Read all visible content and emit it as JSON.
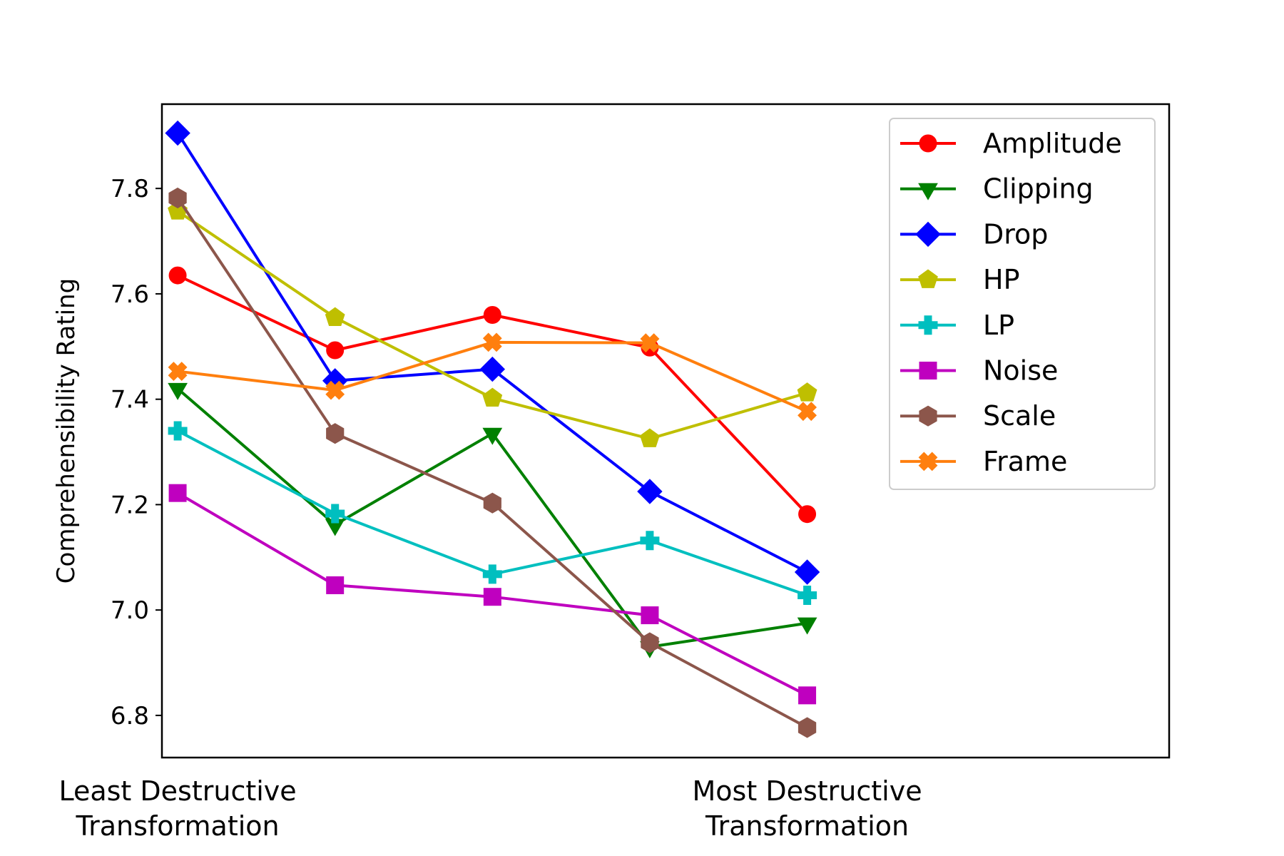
{
  "chart_data": {
    "type": "line",
    "title": "",
    "xlabel": "",
    "ylabel": "Comprehensibility Rating",
    "x": [
      1,
      2,
      3,
      4,
      5
    ],
    "xlim": [
      0.9,
      7.3
    ],
    "ylim": [
      6.72,
      7.96
    ],
    "yticks": [
      6.8,
      7.0,
      7.2,
      7.4,
      7.6,
      7.8
    ],
    "ytick_labels": [
      "6.8",
      "7.0",
      "7.2",
      "7.4",
      "7.6",
      "7.8"
    ],
    "x_category_labels": [
      {
        "x": 1,
        "lines": [
          "Least Destructive",
          "Transformation"
        ]
      },
      {
        "x": 5,
        "lines": [
          "Most Destructive",
          "Transformation"
        ]
      }
    ],
    "grid": false,
    "legend_position": "top-right",
    "series": [
      {
        "name": "Amplitude",
        "color": "#ff0000",
        "marker": "circle",
        "values": [
          7.635,
          7.493,
          7.56,
          7.498,
          7.182
        ]
      },
      {
        "name": "Clipping",
        "color": "#008000",
        "marker": "triangle-down",
        "values": [
          7.42,
          7.162,
          7.335,
          6.93,
          6.975
        ]
      },
      {
        "name": "Drop",
        "color": "#0000ff",
        "marker": "diamond",
        "values": [
          7.905,
          7.435,
          7.457,
          7.225,
          7.072
        ]
      },
      {
        "name": "HP",
        "color": "#bfbf00",
        "marker": "pentagon",
        "values": [
          7.757,
          7.555,
          7.402,
          7.325,
          7.412
        ]
      },
      {
        "name": "LP",
        "color": "#00bfbf",
        "marker": "plus",
        "values": [
          7.34,
          7.183,
          7.068,
          7.132,
          7.028
        ]
      },
      {
        "name": "Noise",
        "color": "#bf00bf",
        "marker": "square",
        "values": [
          7.222,
          7.047,
          7.025,
          6.99,
          6.838
        ]
      },
      {
        "name": "Scale",
        "color": "#8c564b",
        "marker": "hexagon",
        "values": [
          7.782,
          7.335,
          7.203,
          6.938,
          6.777
        ]
      },
      {
        "name": "Frame",
        "color": "#ff7f0e",
        "marker": "x-filled",
        "values": [
          7.453,
          7.417,
          7.508,
          7.507,
          7.377
        ]
      }
    ]
  }
}
